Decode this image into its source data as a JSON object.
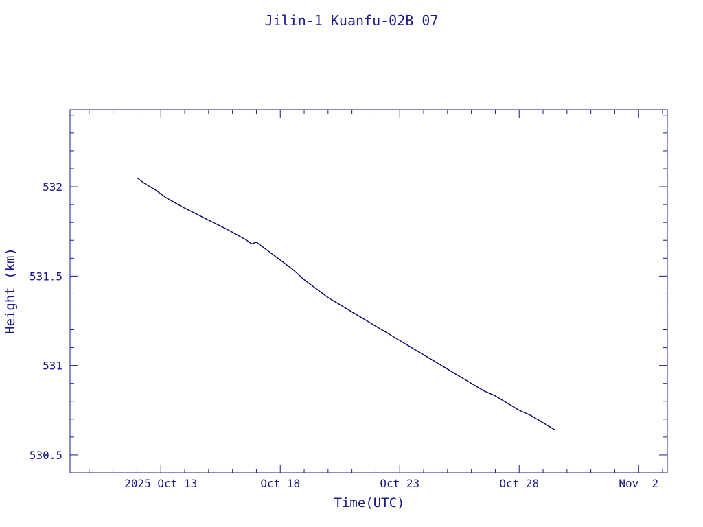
{
  "colors": {
    "ink": "#1a1a8c",
    "line": "#000066",
    "background": "#ffffff"
  },
  "chart_data": {
    "type": "line",
    "title": "Jilin-1 Kuanfu-02B 07",
    "xlabel": "Time(UTC)",
    "ylabel": "Height (km)",
    "x_unit": "days",
    "xlim": [
      -3.8,
      21.2
    ],
    "ylim": [
      530.4,
      532.43
    ],
    "grid": false,
    "x_ticks": [
      {
        "value": 0,
        "label": "2025 Oct 13"
      },
      {
        "value": 5,
        "label": "Oct 18"
      },
      {
        "value": 10,
        "label": "Oct 23"
      },
      {
        "value": 15,
        "label": "Oct 28"
      },
      {
        "value": 20,
        "label": "Nov  2"
      }
    ],
    "y_ticks": [
      {
        "value": 530.5,
        "label": "530.5"
      },
      {
        "value": 531.0,
        "label": "531"
      },
      {
        "value": 531.5,
        "label": "531.5"
      },
      {
        "value": 532.0,
        "label": "532"
      }
    ],
    "series": [
      {
        "x": [
          -1.0,
          -0.7,
          -0.2,
          0.2,
          0.6,
          1.0,
          1.6,
          2.2,
          2.8,
          3.2,
          3.6,
          3.8,
          4.0,
          4.3,
          4.6,
          4.8,
          5.1,
          5.5,
          6.0,
          6.5,
          7.0,
          7.5,
          8.0,
          8.5,
          9.0,
          9.5,
          10.0,
          10.5,
          11.0,
          11.5,
          12.0,
          12.5,
          13.0,
          13.5,
          14.0,
          14.5,
          15.0,
          15.5,
          16.0,
          16.5
        ],
        "y": [
          532.05,
          532.02,
          531.98,
          531.94,
          531.91,
          531.88,
          531.84,
          531.8,
          531.76,
          531.73,
          531.7,
          531.68,
          531.69,
          531.66,
          531.63,
          531.61,
          531.58,
          531.54,
          531.48,
          531.43,
          531.38,
          531.34,
          531.3,
          531.26,
          531.22,
          531.18,
          531.14,
          531.1,
          531.06,
          531.02,
          530.98,
          530.94,
          530.9,
          530.86,
          530.83,
          530.79,
          530.75,
          530.72,
          530.68,
          530.64
        ]
      }
    ]
  }
}
